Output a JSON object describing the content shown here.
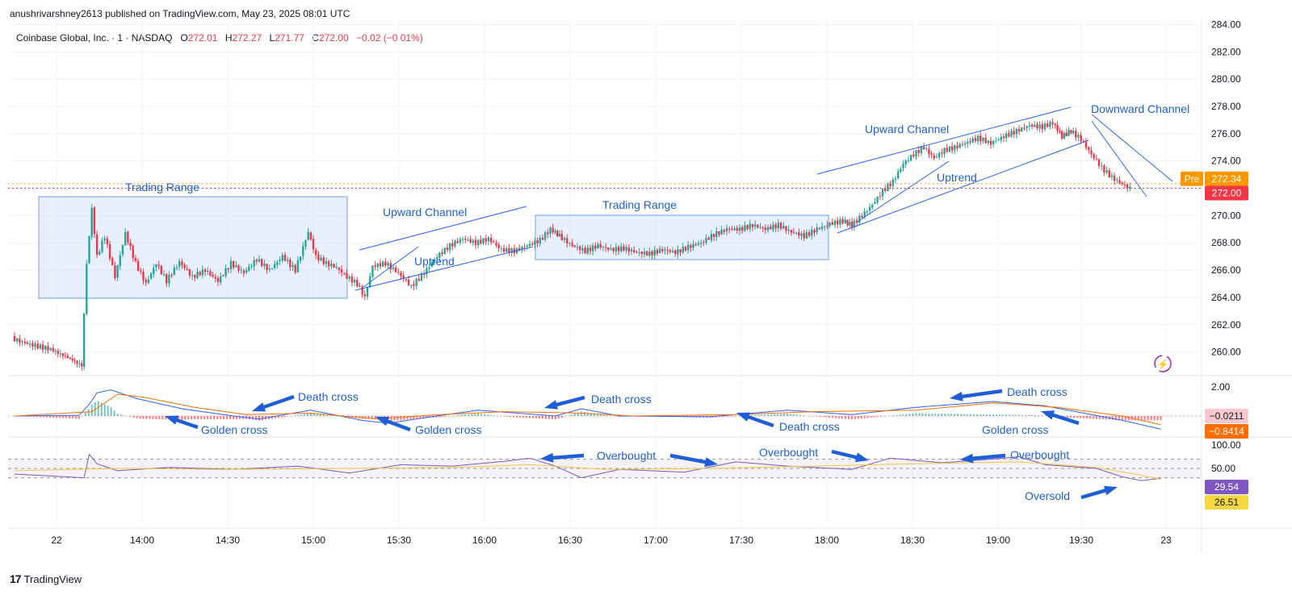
{
  "publisher": "anushrivarshney2613 published on TradingView.com, May 23, 2025 08:01 UTC",
  "legend": {
    "symbol": "Coinbase Global, Inc. · 1 · NASDAQ",
    "o_label": "O",
    "o": "272.01",
    "h_label": "H",
    "h": "272.27",
    "l_label": "L",
    "l": "271.77",
    "c_label": "C",
    "c": "272.00",
    "change": "−0.02 (−0.01%)"
  },
  "brand": "TradingView",
  "colors": {
    "up": "#26a69a",
    "down": "#f23645",
    "annotation": "#1e5fd8",
    "box": "#bcd4f5",
    "macd": "#2962ff",
    "signal": "#ff6d00",
    "rsi": "#7e57c2",
    "rsi_ma": "#f5c542"
  },
  "chart_data": [
    {
      "type": "candlestick",
      "panel": "price",
      "ylim": [
        258.5,
        284.5
      ],
      "y_ticks": [
        "284.00",
        "282.00",
        "280.00",
        "278.00",
        "276.00",
        "274.00",
        "272.00",
        "270.00",
        "268.00",
        "266.00",
        "264.00",
        "262.00",
        "260.00"
      ],
      "x_ticks": [
        "22",
        "14:00",
        "14:30",
        "15:00",
        "15:30",
        "16:00",
        "16:30",
        "17:00",
        "17:30",
        "18:00",
        "18:30",
        "19:00",
        "19:30",
        "23"
      ],
      "price_badges": [
        {
          "label": "Pre",
          "value": "272.34",
          "color": "#ff9800"
        },
        {
          "label": "",
          "value": "272.00",
          "color": "#f23645"
        }
      ],
      "closes": [
        {
          "t": 0,
          "v": 261.0
        },
        {
          "t": 12,
          "v": 260.6
        },
        {
          "t": 30,
          "v": 260.2
        },
        {
          "t": 45,
          "v": 259.5
        },
        {
          "t": 54,
          "v": 259.0
        },
        {
          "t": 58,
          "v": 266.5
        },
        {
          "t": 62,
          "v": 270.5
        },
        {
          "t": 66,
          "v": 267.0
        },
        {
          "t": 72,
          "v": 268.5
        },
        {
          "t": 80,
          "v": 265.5
        },
        {
          "t": 88,
          "v": 268.7
        },
        {
          "t": 96,
          "v": 266.5
        },
        {
          "t": 104,
          "v": 265.0
        },
        {
          "t": 112,
          "v": 266.5
        },
        {
          "t": 120,
          "v": 265.2
        },
        {
          "t": 130,
          "v": 266.6
        },
        {
          "t": 140,
          "v": 265.5
        },
        {
          "t": 150,
          "v": 266.0
        },
        {
          "t": 160,
          "v": 265.2
        },
        {
          "t": 170,
          "v": 266.5
        },
        {
          "t": 180,
          "v": 265.8
        },
        {
          "t": 190,
          "v": 266.8
        },
        {
          "t": 200,
          "v": 266.0
        },
        {
          "t": 210,
          "v": 267.0
        },
        {
          "t": 220,
          "v": 266.0
        },
        {
          "t": 230,
          "v": 268.8
        },
        {
          "t": 236,
          "v": 267.0
        },
        {
          "t": 244,
          "v": 266.5
        },
        {
          "t": 252,
          "v": 266.2
        },
        {
          "t": 260,
          "v": 265.5
        },
        {
          "t": 268,
          "v": 265.0
        },
        {
          "t": 274,
          "v": 264.0
        },
        {
          "t": 280,
          "v": 266.3
        },
        {
          "t": 290,
          "v": 266.5
        },
        {
          "t": 300,
          "v": 265.8
        },
        {
          "t": 310,
          "v": 264.8
        },
        {
          "t": 320,
          "v": 265.8
        },
        {
          "t": 330,
          "v": 267.0
        },
        {
          "t": 340,
          "v": 267.8
        },
        {
          "t": 350,
          "v": 268.3
        },
        {
          "t": 360,
          "v": 268.0
        },
        {
          "t": 370,
          "v": 268.3
        },
        {
          "t": 380,
          "v": 267.5
        },
        {
          "t": 390,
          "v": 267.4
        },
        {
          "t": 400,
          "v": 267.8
        },
        {
          "t": 410,
          "v": 268.2
        },
        {
          "t": 418,
          "v": 269.0
        },
        {
          "t": 425,
          "v": 268.5
        },
        {
          "t": 435,
          "v": 267.8
        },
        {
          "t": 445,
          "v": 267.4
        },
        {
          "t": 455,
          "v": 267.8
        },
        {
          "t": 465,
          "v": 267.5
        },
        {
          "t": 475,
          "v": 267.6
        },
        {
          "t": 485,
          "v": 267.3
        },
        {
          "t": 495,
          "v": 267.2
        },
        {
          "t": 505,
          "v": 267.5
        },
        {
          "t": 515,
          "v": 267.3
        },
        {
          "t": 525,
          "v": 267.7
        },
        {
          "t": 535,
          "v": 268.0
        },
        {
          "t": 545,
          "v": 268.6
        },
        {
          "t": 555,
          "v": 269.0
        },
        {
          "t": 565,
          "v": 269.0
        },
        {
          "t": 575,
          "v": 269.3
        },
        {
          "t": 585,
          "v": 269.0
        },
        {
          "t": 595,
          "v": 269.3
        },
        {
          "t": 605,
          "v": 268.8
        },
        {
          "t": 615,
          "v": 268.5
        },
        {
          "t": 625,
          "v": 269.0
        },
        {
          "t": 635,
          "v": 269.4
        },
        {
          "t": 645,
          "v": 269.6
        },
        {
          "t": 652,
          "v": 269.3
        },
        {
          "t": 660,
          "v": 270.0
        },
        {
          "t": 668,
          "v": 270.8
        },
        {
          "t": 676,
          "v": 271.8
        },
        {
          "t": 684,
          "v": 272.5
        },
        {
          "t": 692,
          "v": 273.8
        },
        {
          "t": 700,
          "v": 274.5
        },
        {
          "t": 708,
          "v": 275.0
        },
        {
          "t": 716,
          "v": 274.2
        },
        {
          "t": 724,
          "v": 274.8
        },
        {
          "t": 732,
          "v": 275.0
        },
        {
          "t": 740,
          "v": 275.3
        },
        {
          "t": 750,
          "v": 275.7
        },
        {
          "t": 760,
          "v": 275.3
        },
        {
          "t": 770,
          "v": 275.8
        },
        {
          "t": 780,
          "v": 276.2
        },
        {
          "t": 790,
          "v": 276.6
        },
        {
          "t": 800,
          "v": 276.5
        },
        {
          "t": 808,
          "v": 276.8
        },
        {
          "t": 815,
          "v": 275.8
        },
        {
          "t": 822,
          "v": 276.2
        },
        {
          "t": 830,
          "v": 275.6
        },
        {
          "t": 838,
          "v": 274.5
        },
        {
          "t": 846,
          "v": 273.5
        },
        {
          "t": 854,
          "v": 272.8
        },
        {
          "t": 862,
          "v": 272.3
        },
        {
          "t": 868,
          "v": 272.0
        }
      ]
    },
    {
      "type": "line",
      "panel": "MACD",
      "y_ticks": [
        "2.00"
      ],
      "value_badges": [
        "−0.0211",
        "−0.8414"
      ],
      "series": [
        {
          "values": [
            [
              0,
              0
            ],
            [
              50,
              0.05
            ],
            [
              58,
              0.8
            ],
            [
              64,
              1.6
            ],
            [
              75,
              1.8
            ],
            [
              95,
              1.2
            ],
            [
              130,
              0.5
            ],
            [
              170,
              0
            ],
            [
              190,
              -0.2
            ],
            [
              230,
              0.4
            ],
            [
              270,
              -0.3
            ],
            [
              290,
              -0.5
            ],
            [
              320,
              -0.1
            ],
            [
              360,
              0.4
            ],
            [
              420,
              0
            ],
            [
              440,
              0.5
            ],
            [
              470,
              0
            ],
            [
              540,
              -0.05
            ],
            [
              600,
              0.4
            ],
            [
              650,
              0.1
            ],
            [
              700,
              0.6
            ],
            [
              760,
              1.0
            ],
            [
              800,
              0.7
            ],
            [
              860,
              -0.3
            ],
            [
              890,
              -0.9
            ]
          ]
        },
        {
          "values": [
            [
              0,
              0
            ],
            [
              60,
              0.3
            ],
            [
              80,
              1.5
            ],
            [
              100,
              1.3
            ],
            [
              140,
              0.6
            ],
            [
              180,
              0.1
            ],
            [
              230,
              0.2
            ],
            [
              280,
              -0.2
            ],
            [
              330,
              0.1
            ],
            [
              380,
              0.3
            ],
            [
              440,
              0.2
            ],
            [
              480,
              0
            ],
            [
              560,
              0.1
            ],
            [
              620,
              0.3
            ],
            [
              700,
              0.4
            ],
            [
              760,
              0.9
            ],
            [
              810,
              0.6
            ],
            [
              860,
              0
            ],
            [
              890,
              -0.6
            ]
          ]
        }
      ]
    },
    {
      "type": "line",
      "panel": "RSI",
      "y_ticks": [
        "100.00",
        "50.00"
      ],
      "value_badges": [
        "29.54",
        "26.51"
      ],
      "bands": [
        70,
        50,
        30
      ],
      "series": [
        {
          "values": [
            [
              0,
              38
            ],
            [
              54,
              30
            ],
            [
              58,
              80
            ],
            [
              64,
              60
            ],
            [
              80,
              45
            ],
            [
              120,
              52
            ],
            [
              170,
              48
            ],
            [
              220,
              55
            ],
            [
              260,
              40
            ],
            [
              300,
              58
            ],
            [
              340,
              55
            ],
            [
              380,
              65
            ],
            [
              400,
              72
            ],
            [
              420,
              55
            ],
            [
              440,
              30
            ],
            [
              470,
              48
            ],
            [
              520,
              42
            ],
            [
              560,
              64
            ],
            [
              600,
              55
            ],
            [
              650,
              48
            ],
            [
              680,
              72
            ],
            [
              720,
              62
            ],
            [
              760,
              70
            ],
            [
              780,
              75
            ],
            [
              800,
              58
            ],
            [
              840,
              50
            ],
            [
              860,
              32
            ],
            [
              875,
              24
            ],
            [
              890,
              29
            ]
          ]
        },
        {
          "values": [
            [
              0,
              45
            ],
            [
              80,
              50
            ],
            [
              160,
              48
            ],
            [
              260,
              50
            ],
            [
              340,
              52
            ],
            [
              400,
              58
            ],
            [
              460,
              48
            ],
            [
              540,
              50
            ],
            [
              620,
              55
            ],
            [
              700,
              60
            ],
            [
              780,
              64
            ],
            [
              840,
              52
            ],
            [
              870,
              38
            ],
            [
              890,
              27
            ]
          ]
        }
      ]
    }
  ],
  "annotations": {
    "trading_range_1": "Trading Range",
    "upward_channel_1": "Upward Channel",
    "uptrend_1": "Uptrend",
    "trading_range_2": "Trading Range",
    "upward_channel_2": "Upward Channel",
    "uptrend_2": "Uptrend",
    "downward_channel": "Downward Channel",
    "death_cross_1": "Death cross",
    "golden_cross_1": "Golden cross",
    "golden_cross_2": "Golden cross",
    "death_cross_2": "Death cross",
    "death_cross_3": "Death cross",
    "death_cross_4": "Death cross",
    "golden_cross_3": "Golden cross",
    "overbought_1": "Overbought",
    "overbought_2": "Overbought",
    "overbought_3": "Overbought",
    "oversold": "Oversold"
  }
}
